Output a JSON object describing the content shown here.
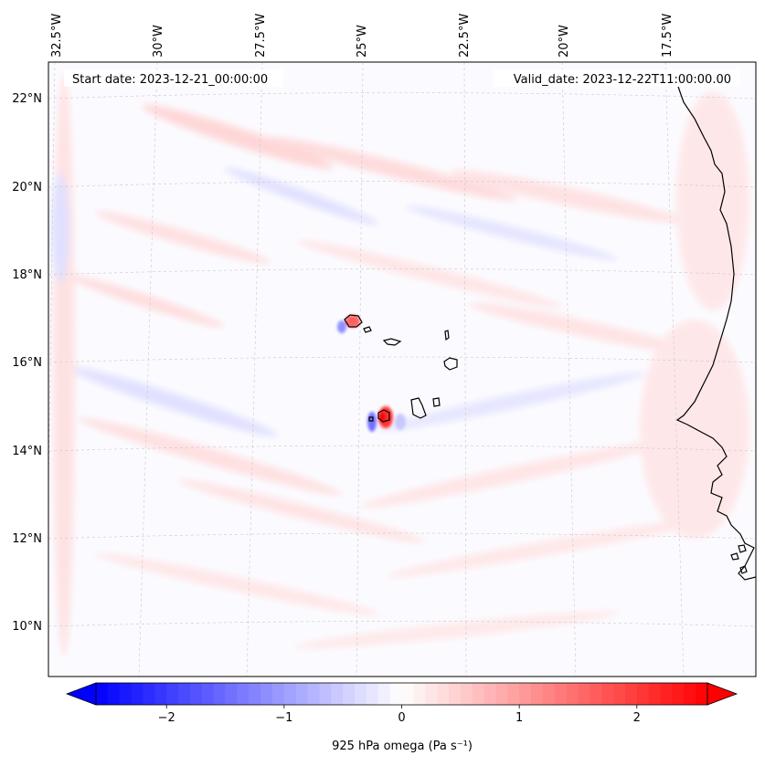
{
  "header": {
    "start_date": "Start date: 2023-12-21_00:00:00",
    "valid_date": "Valid_date: 2023-12-22T11:00:00.00"
  },
  "map": {
    "longitude_labels": [
      "32.5°W",
      "30°W",
      "27.5°W",
      "25°W",
      "22.5°W",
      "20°W",
      "17.5°W"
    ],
    "latitude_labels": [
      "22°N",
      "20°N",
      "18°N",
      "16°N",
      "14°N",
      "12°N",
      "10°N"
    ],
    "field": "925 hPa omega",
    "coastline_color": "#000000",
    "gridline_color": "#bbbbbb"
  },
  "colorbar": {
    "label": "925 hPa omega (Pa s⁻¹)",
    "ticks": [
      "−2",
      "−1",
      "0",
      "1",
      "2"
    ],
    "tick_values": [
      -2,
      -1,
      0,
      1,
      2
    ],
    "range": [
      -2.6,
      2.6
    ],
    "extend": "both",
    "colors": {
      "min": "#0000ff",
      "mid": "#ffffff",
      "max": "#ff0000"
    }
  }
}
